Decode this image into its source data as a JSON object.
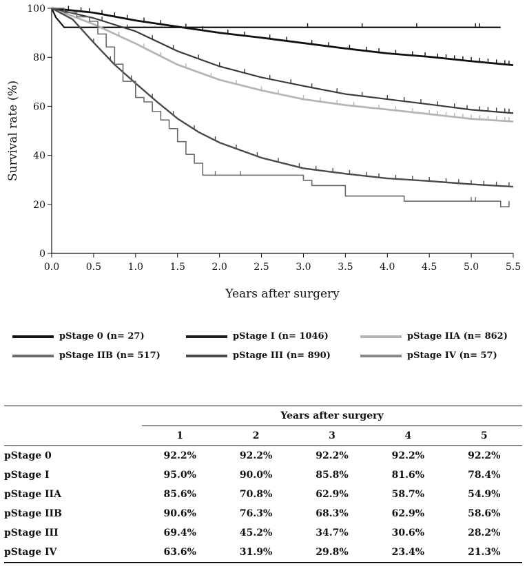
{
  "chart_data": {
    "type": "line",
    "subtype": "kaplan-meier",
    "title": "",
    "xlabel": "Years after surgery",
    "ylabel": "Survival rate (%)",
    "xlim": [
      0,
      5.5
    ],
    "ylim": [
      0,
      100
    ],
    "xticks": [
      "0.0",
      "0.5",
      "1.0",
      "1.5",
      "2.0",
      "2.5",
      "3.0",
      "3.5",
      "4.0",
      "4.5",
      "5.0",
      "5.5"
    ],
    "yticks": [
      "0",
      "20",
      "40",
      "60",
      "80",
      "100"
    ],
    "grid": false,
    "series": [
      {
        "name": "pStage 0 (n= 27)",
        "color": "#111111",
        "width": 2.2,
        "x": [
          0,
          0.05,
          0.15,
          1.6,
          5.35
        ],
        "y": [
          100,
          96.3,
          92.2,
          92.2,
          92.2
        ],
        "censor_x": [
          3.05,
          3.7,
          4.35,
          5.05,
          5.1
        ]
      },
      {
        "name": "pStage I (n= 1046)",
        "color": "#111111",
        "width": 2.8,
        "x": [
          0,
          0.5,
          1.0,
          1.5,
          2.0,
          2.5,
          3.0,
          3.5,
          4.0,
          4.5,
          5.0,
          5.5
        ],
        "y": [
          100,
          98.2,
          95.0,
          92.5,
          90.0,
          88.0,
          85.8,
          83.6,
          81.6,
          80.2,
          78.4,
          76.8
        ],
        "censor_x": [
          0.2,
          0.35,
          0.45,
          0.6,
          0.75,
          0.9,
          1.1,
          1.3,
          1.6,
          1.8,
          2.1,
          2.3,
          2.6,
          2.8,
          3.1,
          3.3,
          3.55,
          3.75,
          3.9,
          4.1,
          4.3,
          4.45,
          4.6,
          4.7,
          4.8,
          4.9,
          5.0,
          5.1,
          5.2,
          5.3,
          5.4,
          5.45
        ]
      },
      {
        "name": "pStage IIA (n= 862)",
        "color": "#b5b5b5",
        "width": 2.8,
        "x": [
          0,
          0.5,
          1.0,
          1.5,
          2.0,
          2.5,
          3.0,
          3.5,
          4.0,
          4.5,
          5.0,
          5.5
        ],
        "y": [
          100,
          93.5,
          85.6,
          77.0,
          70.8,
          66.5,
          62.9,
          60.5,
          58.7,
          56.8,
          54.9,
          53.8
        ],
        "censor_x": [
          0.8,
          1.1,
          1.3,
          1.6,
          1.9,
          2.2,
          2.5,
          2.7,
          3.0,
          3.2,
          3.4,
          3.6,
          3.9,
          4.1,
          4.3,
          4.5,
          4.6,
          4.7,
          4.8,
          4.9,
          5.0,
          5.1,
          5.2,
          5.3,
          5.4,
          5.45
        ]
      },
      {
        "name": "pStage IIB (n= 517)",
        "color": "#3a3a3a",
        "width": 2.2,
        "x": [
          0,
          0.5,
          1.0,
          1.5,
          2.0,
          2.5,
          3.0,
          3.5,
          4.0,
          4.5,
          5.0,
          5.5
        ],
        "y": [
          100,
          96.0,
          90.6,
          82.5,
          76.3,
          71.8,
          68.3,
          65.0,
          62.9,
          60.8,
          58.6,
          57.2
        ],
        "censor_x": [
          0.6,
          0.9,
          1.2,
          1.45,
          1.75,
          2.0,
          2.3,
          2.6,
          2.85,
          3.1,
          3.4,
          3.7,
          4.0,
          4.2,
          4.4,
          4.6,
          4.8,
          4.95,
          5.1,
          5.2,
          5.3,
          5.4,
          5.45
        ]
      },
      {
        "name": "pStage III (n= 890)",
        "color": "#4a4a4a",
        "width": 2.4,
        "x": [
          0,
          0.25,
          0.5,
          0.75,
          1.0,
          1.25,
          1.5,
          1.75,
          2.0,
          2.5,
          3.0,
          3.5,
          4.0,
          4.5,
          5.0,
          5.5
        ],
        "y": [
          100,
          95.5,
          86.0,
          77.0,
          69.4,
          62.0,
          55.0,
          49.5,
          45.2,
          39.0,
          34.7,
          32.5,
          30.6,
          29.5,
          28.2,
          27.2
        ],
        "censor_x": [
          0.5,
          0.7,
          0.95,
          1.2,
          1.45,
          1.7,
          1.95,
          2.2,
          2.45,
          2.7,
          2.95,
          3.15,
          3.35,
          3.55,
          3.75,
          3.9,
          4.1,
          4.3,
          4.5,
          4.7,
          4.85,
          5.0,
          5.15,
          5.3,
          5.45
        ]
      },
      {
        "name": "pStage IV (n= 57)",
        "color": "#6a6a6a",
        "width": 1.6,
        "step": true,
        "x": [
          0,
          0.15,
          0.3,
          0.45,
          0.55,
          0.65,
          0.75,
          0.85,
          1.0,
          1.1,
          1.2,
          1.3,
          1.4,
          1.5,
          1.6,
          1.7,
          1.8,
          2.0,
          2.5,
          3.0,
          3.1,
          3.5,
          4.0,
          4.2,
          4.5,
          5.0,
          5.35,
          5.45
        ],
        "y": [
          100,
          98.2,
          96.5,
          94.7,
          89.5,
          84.2,
          77.2,
          70.2,
          63.6,
          61.8,
          57.9,
          54.4,
          50.9,
          45.6,
          40.4,
          36.8,
          31.9,
          31.9,
          31.9,
          29.8,
          27.7,
          23.4,
          23.4,
          21.3,
          21.3,
          21.3,
          19.0,
          21.3
        ],
        "censor_x": [
          1.95,
          2.25,
          5.0,
          5.05
        ]
      }
    ]
  },
  "legend": [
    {
      "label": "pStage 0 (n= 27)",
      "color": "#111111"
    },
    {
      "label": "pStage I (n= 1046)",
      "color": "#1c1c1c"
    },
    {
      "label": "pStage IIA (n= 862)",
      "color": "#b5b5b5"
    },
    {
      "label": "pStage IIB (n= 517)",
      "color": "#6a6a6a"
    },
    {
      "label": "pStage III (n= 890)",
      "color": "#4a4a4a"
    },
    {
      "label": "pStage IV (n= 57)",
      "color": "#888888"
    }
  ],
  "table": {
    "group_header": "Years after surgery",
    "columns": [
      "1",
      "2",
      "3",
      "4",
      "5"
    ],
    "rows": [
      {
        "stage": "pStage 0",
        "values": [
          "92.2%",
          "92.2%",
          "92.2%",
          "92.2%",
          "92.2%"
        ]
      },
      {
        "stage": "pStage I",
        "values": [
          "95.0%",
          "90.0%",
          "85.8%",
          "81.6%",
          "78.4%"
        ]
      },
      {
        "stage": "pStage IIA",
        "values": [
          "85.6%",
          "70.8%",
          "62.9%",
          "58.7%",
          "54.9%"
        ]
      },
      {
        "stage": "pStage IIB",
        "values": [
          "90.6%",
          "76.3%",
          "68.3%",
          "62.9%",
          "58.6%"
        ]
      },
      {
        "stage": "pStage III",
        "values": [
          "69.4%",
          "45.2%",
          "34.7%",
          "30.6%",
          "28.2%"
        ]
      },
      {
        "stage": "pStage IV",
        "values": [
          "63.6%",
          "31.9%",
          "29.8%",
          "23.4%",
          "21.3%"
        ]
      }
    ]
  }
}
